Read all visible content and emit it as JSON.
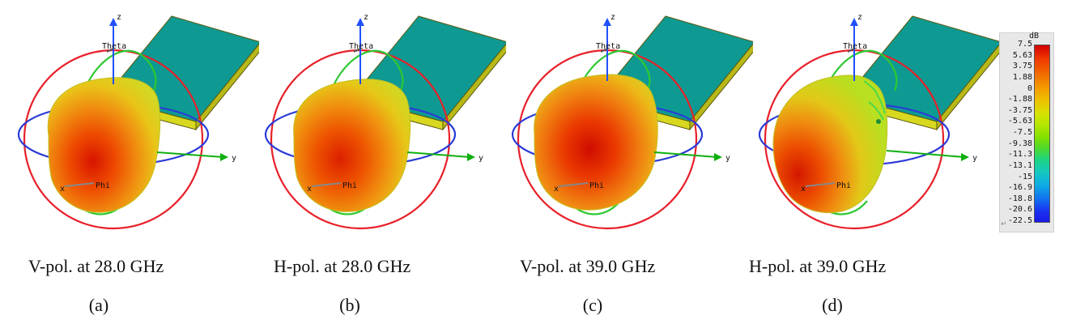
{
  "panels": [
    {
      "caption": "V-pol. at 28.0 GHz",
      "label": "(a)"
    },
    {
      "caption": "H-pol. at 28.0 GHz",
      "label": "(b)"
    },
    {
      "caption": "V-pol. at 39.0 GHz",
      "label": "(c)"
    },
    {
      "caption": "H-pol. at 39.0 GHz",
      "label": "(d)"
    }
  ],
  "axes": {
    "z": "z",
    "y": "y",
    "x": "x",
    "theta": "Theta",
    "phi": "Phi"
  },
  "colorbar": {
    "unit": "dB",
    "ticks": [
      "7.5",
      "5.63",
      "3.75",
      "1.88",
      "0",
      "-1.88",
      "-3.75",
      "-5.63",
      "-7.5",
      "-9.38",
      "-11.3",
      "-13.1",
      "-15",
      "-16.9",
      "-18.8",
      "-20.6",
      "-22.5"
    ]
  },
  "colors": {
    "ring_red": "#e8202a",
    "ring_green": "#2ec832",
    "ring_blue": "#2a3ad6",
    "axis_blue": "#2050ff",
    "axis_green": "#10b010",
    "board_top": "#0e9a92",
    "board_edge": "#d8d820"
  }
}
